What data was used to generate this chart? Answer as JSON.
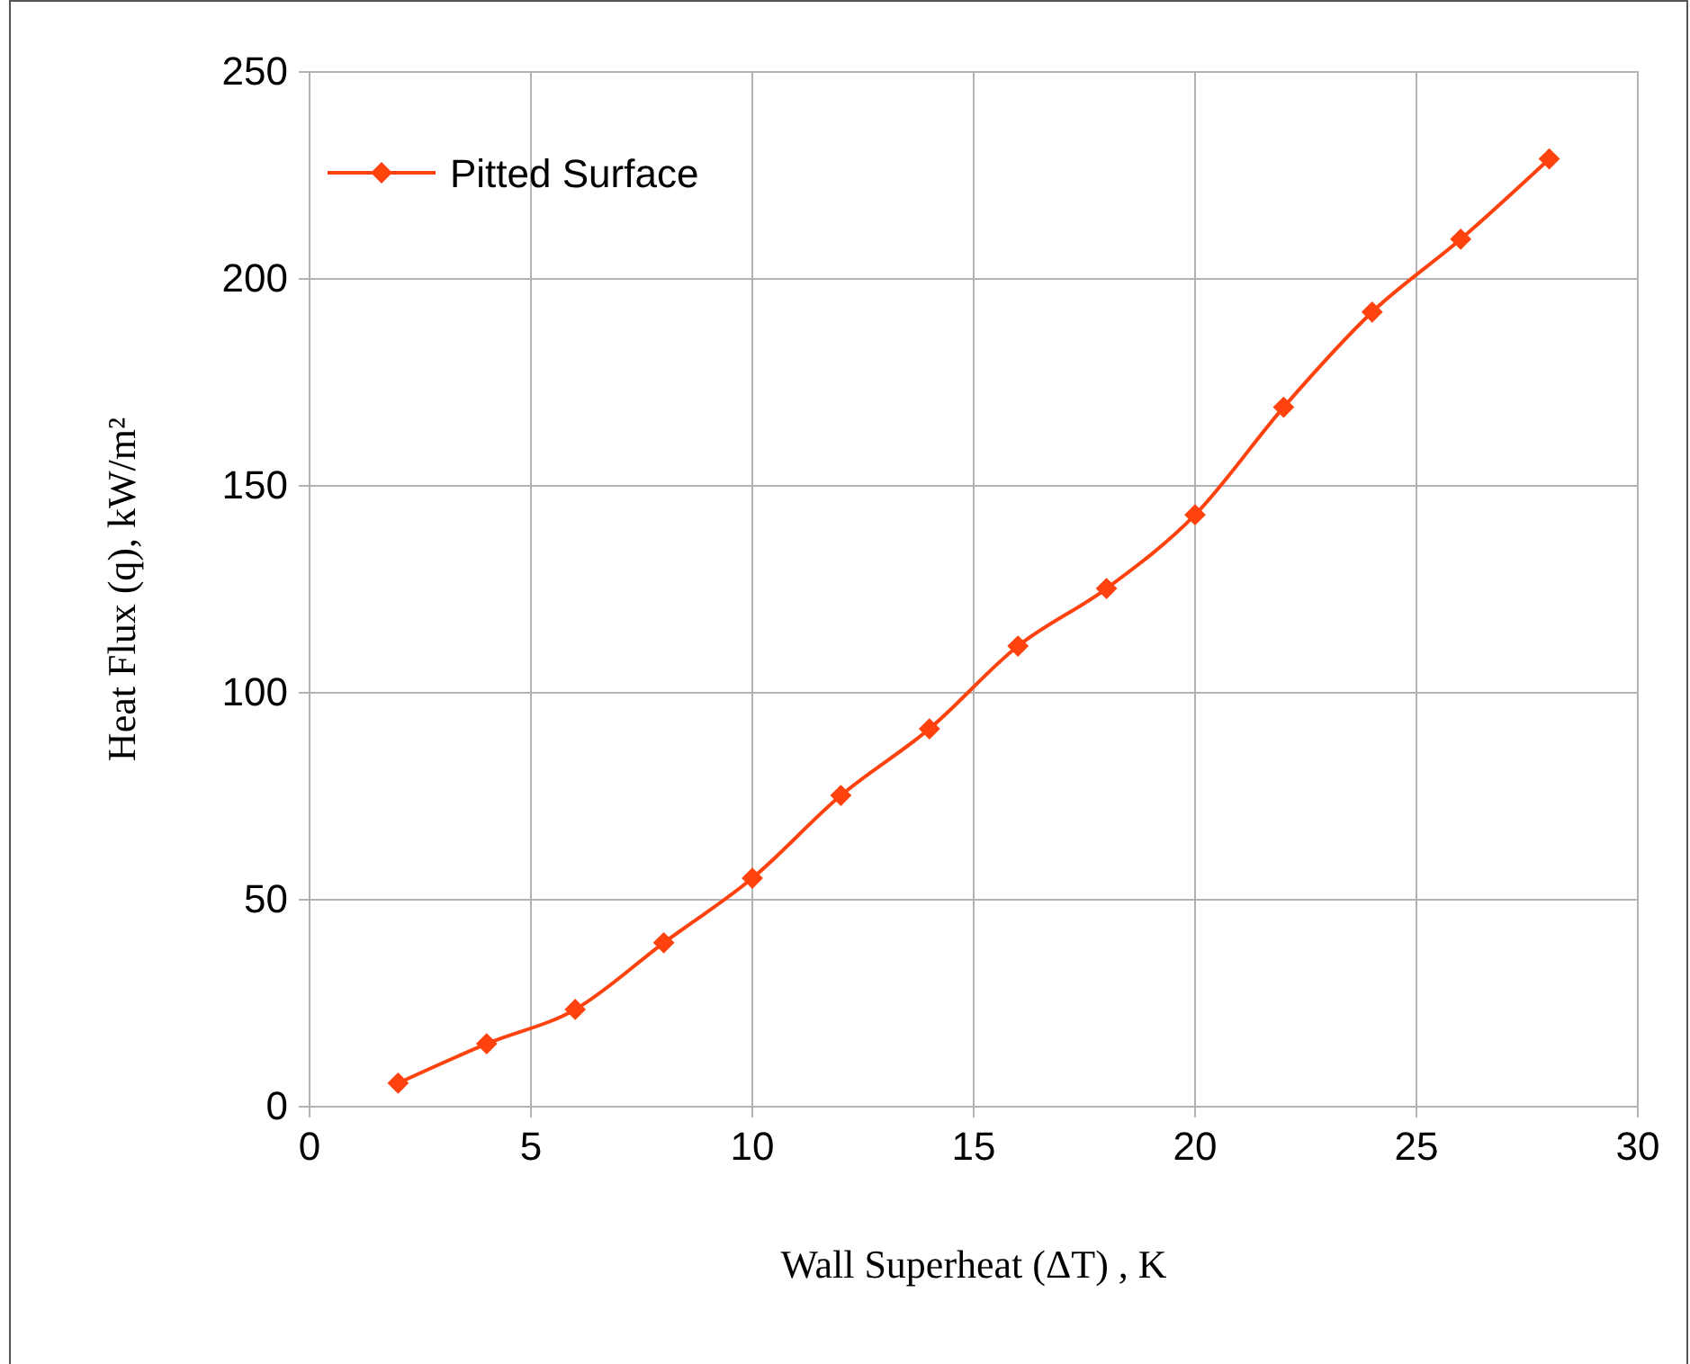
{
  "chart_data": {
    "type": "line",
    "xlabel": "Wall Superheat (ΔT) , K",
    "ylabel": "Heat Flux (q), kW/m²",
    "x": [
      2,
      4,
      6,
      8,
      10,
      12,
      14,
      16,
      18,
      20,
      22,
      24,
      26,
      28
    ],
    "series": [
      {
        "name": "Pitted Surface",
        "color": "#ff420e",
        "values": [
          5.7,
          15.2,
          23.5,
          39.6,
          55.2,
          75.2,
          91.3,
          111.3,
          125.2,
          143,
          169,
          192,
          209.6,
          229
        ]
      }
    ],
    "xlim": [
      0,
      30
    ],
    "xticks": [
      0,
      5,
      10,
      15,
      20,
      25,
      30
    ],
    "ylim": [
      0,
      250
    ],
    "yticks": [
      0,
      50,
      100,
      150,
      200,
      250
    ],
    "grid": true,
    "legend": "top left",
    "marker": "diamond",
    "line_style": "solid"
  }
}
